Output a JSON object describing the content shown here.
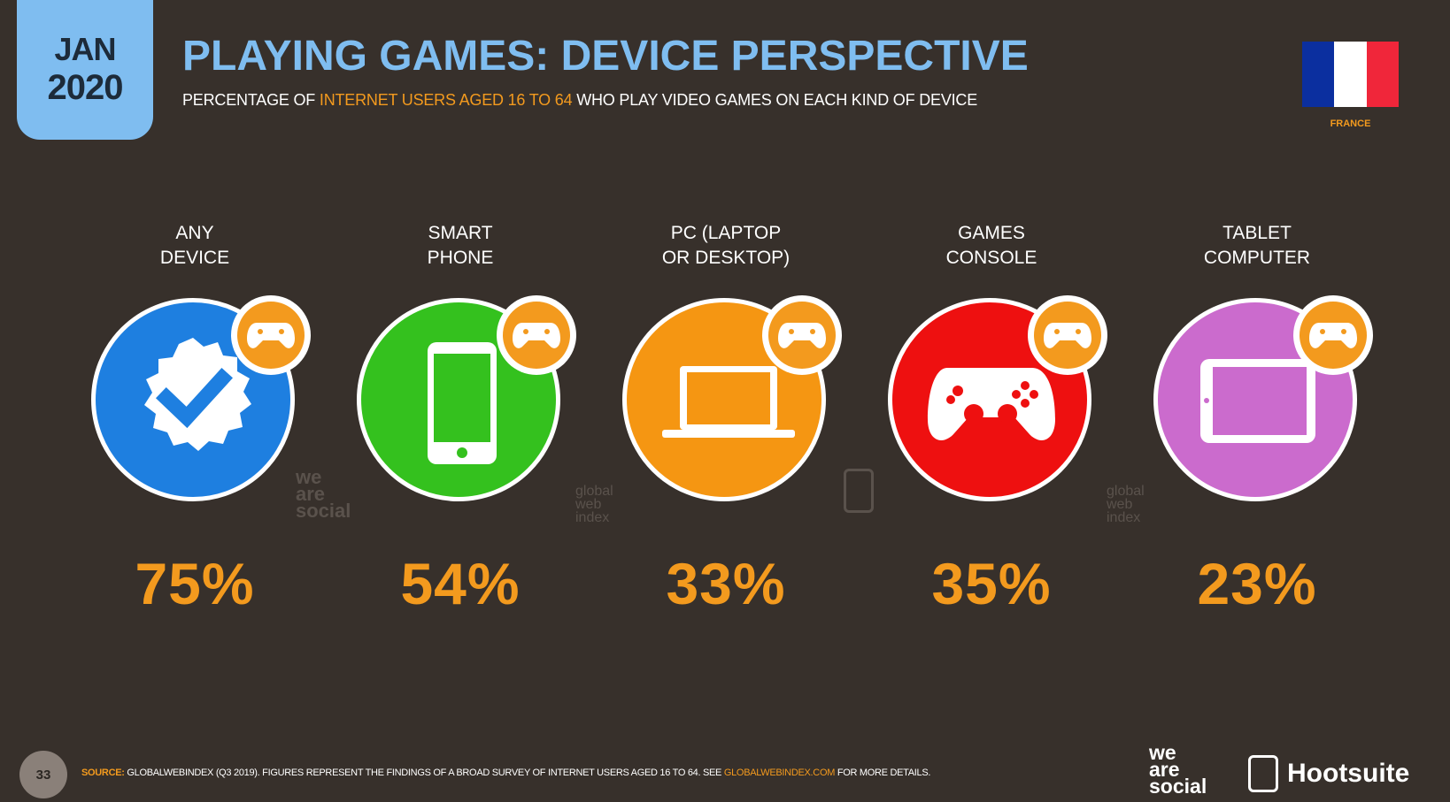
{
  "header": {
    "date_month": "JAN",
    "date_year": "2020",
    "title": "PLAYING GAMES: DEVICE PERSPECTIVE",
    "subtitle_pre": "PERCENTAGE OF ",
    "subtitle_highlight": "INTERNET USERS AGED 16 TO 64",
    "subtitle_post": " WHO PLAY VIDEO GAMES ON EACH KIND OF DEVICE",
    "country": "FRANCE",
    "flag_colors": [
      "#0b2f9f",
      "#ffffff",
      "#f0263a"
    ]
  },
  "colors": {
    "accent": "#f39a1e",
    "title": "#7fbdf0",
    "background": "#37302b"
  },
  "devices": [
    {
      "label_line1": "ANY",
      "label_line2": "DEVICE",
      "value": "75%",
      "color": "#1e7fe0",
      "icon": "verified-check-icon"
    },
    {
      "label_line1": "SMART",
      "label_line2": "PHONE",
      "value": "54%",
      "color": "#34c11e",
      "icon": "smartphone-icon"
    },
    {
      "label_line1": "PC (LAPTOP",
      "label_line2": "OR DESKTOP)",
      "value": "33%",
      "color": "#f59612",
      "icon": "laptop-icon"
    },
    {
      "label_line1": "GAMES",
      "label_line2": "CONSOLE",
      "value": "35%",
      "color": "#ee1010",
      "icon": "gamepad-icon"
    },
    {
      "label_line1": "TABLET",
      "label_line2": "COMPUTER",
      "value": "23%",
      "color": "#cb6bcd",
      "icon": "tablet-icon"
    }
  ],
  "watermarks": {
    "was_line1": "we",
    "was_line2": "are",
    "was_line3": "social",
    "gwi_line1": "global",
    "gwi_line2": "web",
    "gwi_line3": "index"
  },
  "footer": {
    "page_number": "33",
    "source_label": "SOURCE:",
    "source_text": " GLOBALWEBINDEX (Q3 2019). FIGURES REPRESENT THE FINDINGS OF A BROAD SURVEY OF INTERNET USERS AGED 16 TO 64. SEE ",
    "source_link": "GLOBALWEBINDEX.COM",
    "source_end": " FOR MORE DETAILS.",
    "logo_was_1": "we",
    "logo_was_2": "are",
    "logo_was_3": "social",
    "logo_hootsuite": "Hootsuite"
  }
}
